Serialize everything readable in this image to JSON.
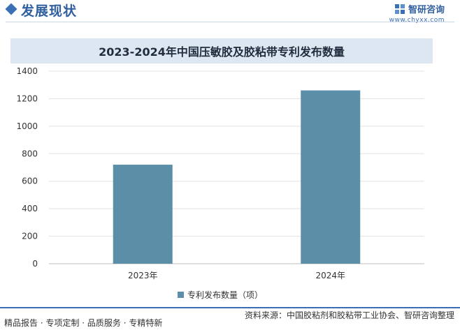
{
  "header": {
    "section_title": "发展现状",
    "brand_name": "智研咨询",
    "brand_url": "www.chyxx.com"
  },
  "chart_data": {
    "type": "bar",
    "title": "2023-2024年中国压敏胶及胶粘带专利发布数量",
    "categories": [
      "2023年",
      "2024年"
    ],
    "series": [
      {
        "name": "专利发布数量（项）",
        "values": [
          720,
          1260
        ]
      }
    ],
    "ylim": [
      0,
      1400
    ],
    "yticks": [
      0,
      200,
      400,
      600,
      800,
      1000,
      1200,
      1400
    ],
    "grid": true,
    "legend": "bottom",
    "color": "#5b8fa8"
  },
  "footer": {
    "left_text": "精品报告 · 专项定制 · 品质服务 · 专精特新",
    "right_text": "资料来源：中国胶粘剂和胶粘带工业协会、智研咨询整理"
  }
}
